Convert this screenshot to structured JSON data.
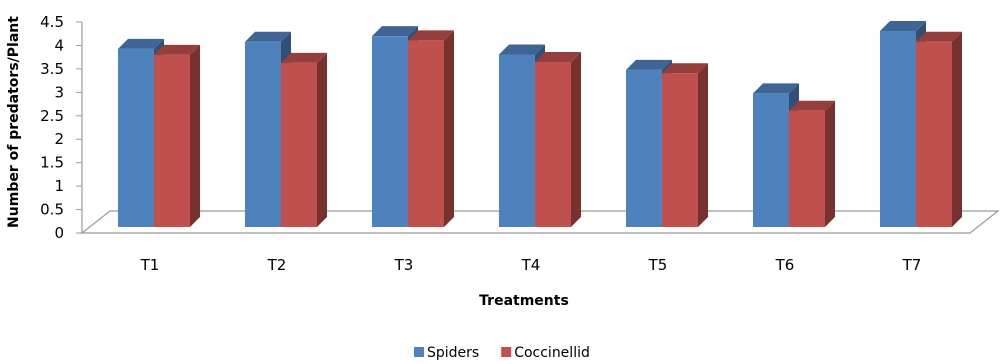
{
  "chart_data": {
    "type": "bar",
    "categories": [
      "T1",
      "T2",
      "T3",
      "T4",
      "T5",
      "T6",
      "T7"
    ],
    "series": [
      {
        "name": "Spiders",
        "values": [
          3.8,
          3.95,
          4.07,
          3.68,
          3.35,
          2.85,
          4.18
        ],
        "color": "#4F81BD"
      },
      {
        "name": "Coccinellid",
        "values": [
          3.67,
          3.5,
          3.98,
          3.52,
          3.28,
          2.48,
          3.95
        ],
        "color": "#C0504D"
      }
    ],
    "xlabel": "Treatments",
    "ylabel": "Number  of predators/Plant",
    "ylim": [
      0,
      4.5
    ],
    "yticks": [
      "0",
      "0.5",
      "1",
      "1.5",
      "2",
      "2.5",
      "3",
      "3.5",
      "4",
      "4.5"
    ],
    "grid": false,
    "style": "3d-clustered-columns",
    "legend_position": "bottom"
  }
}
